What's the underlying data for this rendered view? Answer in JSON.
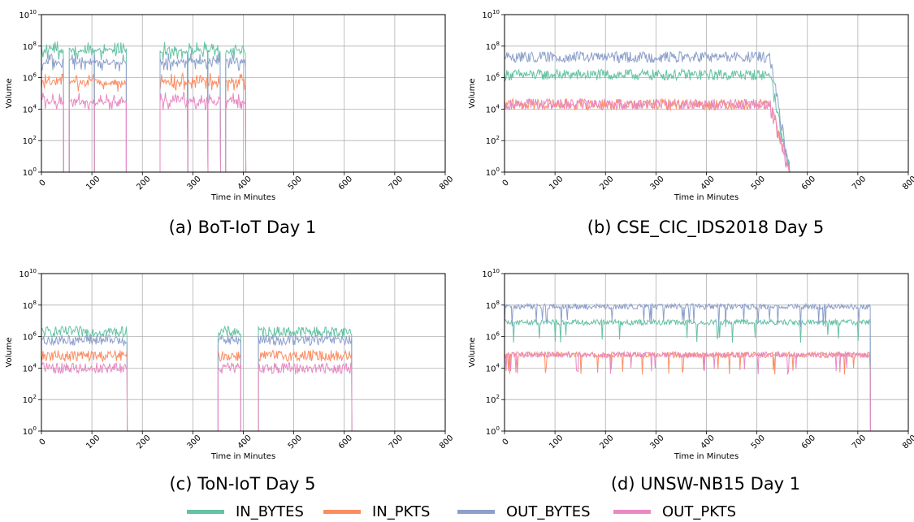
{
  "colors": {
    "IN_BYTES": "#66c2a5",
    "IN_PKTS": "#fc8d62",
    "OUT_BYTES": "#8da0cb",
    "OUT_PKTS": "#e78ac3"
  },
  "legend": [
    {
      "name": "IN_BYTES",
      "color": "#66c2a5"
    },
    {
      "name": "IN_PKTS",
      "color": "#fc8d62"
    },
    {
      "name": "OUT_BYTES",
      "color": "#8da0cb"
    },
    {
      "name": "OUT_PKTS",
      "color": "#e78ac3"
    }
  ],
  "chart_data": [
    {
      "type": "line",
      "caption": "(a) BoT-IoT Day 1",
      "xlabel": "Time in Minutes",
      "ylabel": "Volume",
      "xlim": [
        0,
        800
      ],
      "ylim_log10": [
        0,
        10
      ],
      "yscale": "log",
      "grid": true,
      "xticks": [
        "0",
        "100",
        "200",
        "300",
        "400",
        "500",
        "600",
        "700",
        "800"
      ],
      "yticks": [
        "10^0",
        "10^2",
        "10^4",
        "10^6",
        "10^8",
        "10^10"
      ],
      "active_intervals_minutes": [
        [
          0,
          44
        ],
        [
          55,
          105
        ],
        [
          105,
          168
        ],
        [
          235,
          290
        ],
        [
          290,
          330
        ],
        [
          330,
          355
        ],
        [
          365,
          405
        ]
      ],
      "series": [
        {
          "name": "IN_BYTES",
          "approx_volume": 50000000
        },
        {
          "name": "IN_PKTS",
          "approx_volume": 500000
        },
        {
          "name": "OUT_BYTES",
          "approx_volume": 10000000
        },
        {
          "name": "OUT_PKTS",
          "approx_volume": 30000
        }
      ]
    },
    {
      "type": "line",
      "caption": "(b) CSE_CIC_IDS2018 Day 5",
      "xlabel": "Time in Minutes",
      "ylabel": "Volume",
      "xlim": [
        0,
        800
      ],
      "ylim_log10": [
        0,
        10
      ],
      "yscale": "log",
      "grid": true,
      "xticks": [
        "0",
        "100",
        "200",
        "300",
        "400",
        "500",
        "600",
        "700",
        "800"
      ],
      "yticks": [
        "10^0",
        "10^2",
        "10^4",
        "10^6",
        "10^8",
        "10^10"
      ],
      "active_intervals_minutes": [
        [
          0,
          565
        ]
      ],
      "series": [
        {
          "name": "IN_BYTES",
          "approx_volume": 1500000
        },
        {
          "name": "IN_PKTS",
          "approx_volume": 20000
        },
        {
          "name": "OUT_BYTES",
          "approx_volume": 20000000
        },
        {
          "name": "OUT_PKTS",
          "approx_volume": 20000
        }
      ]
    },
    {
      "type": "line",
      "caption": "(c) ToN-IoT Day 5",
      "xlabel": "Time in Minutes",
      "ylabel": "Volume",
      "xlim": [
        0,
        800
      ],
      "ylim_log10": [
        0,
        10
      ],
      "yscale": "log",
      "grid": true,
      "xticks": [
        "0",
        "100",
        "200",
        "300",
        "400",
        "500",
        "600",
        "700",
        "800"
      ],
      "yticks": [
        "10^0",
        "10^2",
        "10^4",
        "10^6",
        "10^8",
        "10^10"
      ],
      "active_intervals_minutes": [
        [
          0,
          170
        ],
        [
          350,
          395
        ],
        [
          430,
          615
        ]
      ],
      "series": [
        {
          "name": "IN_BYTES",
          "approx_volume": 2000000
        },
        {
          "name": "IN_PKTS",
          "approx_volume": 60000
        },
        {
          "name": "OUT_BYTES",
          "approx_volume": 600000
        },
        {
          "name": "OUT_PKTS",
          "approx_volume": 10000
        }
      ]
    },
    {
      "type": "line",
      "caption": "(d) UNSW-NB15 Day 1",
      "xlabel": "Time in Minutes",
      "ylabel": "Volume",
      "xlim": [
        0,
        800
      ],
      "ylim_log10": [
        0,
        10
      ],
      "yscale": "log",
      "grid": true,
      "xticks": [
        "0",
        "100",
        "200",
        "300",
        "400",
        "500",
        "600",
        "700",
        "800"
      ],
      "yticks": [
        "10^0",
        "10^2",
        "10^4",
        "10^6",
        "10^8",
        "10^10"
      ],
      "active_intervals_minutes": [
        [
          0,
          725
        ]
      ],
      "series": [
        {
          "name": "IN_BYTES",
          "approx_volume": 8000000
        },
        {
          "name": "IN_PKTS",
          "approx_volume": 70000
        },
        {
          "name": "OUT_BYTES",
          "approx_volume": 80000000
        },
        {
          "name": "OUT_PKTS",
          "approx_volume": 70000
        }
      ]
    }
  ]
}
